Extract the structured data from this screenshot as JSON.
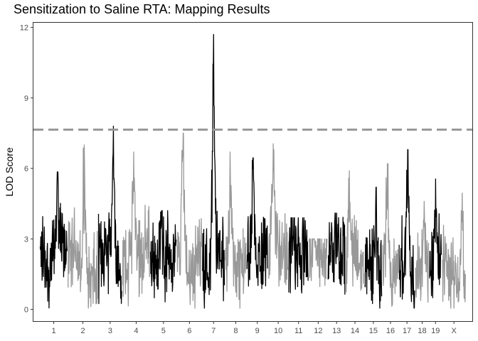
{
  "chart_data": {
    "type": "line",
    "title": "Sensitization to Saline RTA: Mapping Results",
    "xlabel": "",
    "ylabel": "LOD Score",
    "ylim": [
      -0.5,
      12.2
    ],
    "yticks": [
      0,
      3,
      6,
      9,
      12
    ],
    "threshold": 7.65,
    "grid": false,
    "legend": "none",
    "colors": {
      "odd": "#000000",
      "even": "#999999",
      "threshold": "#999999",
      "frame": "#333333"
    },
    "chromosomes": [
      {
        "label": "1",
        "x_range": [
          0,
          22
        ],
        "max_lod": 5.85,
        "peak_x": 14,
        "color_group": "odd"
      },
      {
        "label": "2",
        "x_range": [
          22,
          46
        ],
        "max_lod": 7.0,
        "peak_x": 35,
        "color_group": "even"
      },
      {
        "label": "3",
        "x_range": [
          46,
          65
        ],
        "max_lod": 7.8,
        "peak_x": 58,
        "color_group": "odd"
      },
      {
        "label": "4",
        "x_range": [
          65,
          87
        ],
        "max_lod": 6.7,
        "peak_x": 74,
        "color_group": "even"
      },
      {
        "label": "5",
        "x_range": [
          87,
          108
        ],
        "max_lod": 4.2,
        "peak_x": 96,
        "color_group": "odd"
      },
      {
        "label": "6",
        "x_range": [
          108,
          128
        ],
        "max_lod": 7.5,
        "peak_x": 113,
        "color_group": "even"
      },
      {
        "label": "7",
        "x_range": [
          128,
          146
        ],
        "max_lod": 11.7,
        "peak_x": 137,
        "color_group": "odd"
      },
      {
        "label": "8",
        "x_range": [
          146,
          163
        ],
        "max_lod": 6.7,
        "peak_x": 150,
        "color_group": "even"
      },
      {
        "label": "9",
        "x_range": [
          163,
          180
        ],
        "max_lod": 6.45,
        "peak_x": 168,
        "color_group": "odd"
      },
      {
        "label": "10",
        "x_range": [
          180,
          196
        ],
        "max_lod": 7.05,
        "peak_x": 184,
        "color_group": "even"
      },
      {
        "label": "11",
        "x_range": [
          196,
          212
        ],
        "max_lod": 3.9,
        "peak_x": 199,
        "color_group": "odd"
      },
      {
        "label": "12",
        "x_range": [
          212,
          227
        ],
        "max_lod": 3.0,
        "peak_x": 219,
        "color_group": "even"
      },
      {
        "label": "13",
        "x_range": [
          227,
          241
        ],
        "max_lod": 4.1,
        "peak_x": 233,
        "color_group": "odd"
      },
      {
        "label": "14",
        "x_range": [
          241,
          256
        ],
        "max_lod": 5.9,
        "peak_x": 244,
        "color_group": "even"
      },
      {
        "label": "15",
        "x_range": [
          256,
          270
        ],
        "max_lod": 5.2,
        "peak_x": 265,
        "color_group": "odd"
      },
      {
        "label": "16",
        "x_range": [
          270,
          283
        ],
        "max_lod": 6.2,
        "peak_x": 274,
        "color_group": "even"
      },
      {
        "label": "17",
        "x_range": [
          283,
          296
        ],
        "max_lod": 6.8,
        "peak_x": 290,
        "color_group": "odd"
      },
      {
        "label": "18",
        "x_range": [
          296,
          307
        ],
        "max_lod": 4.6,
        "peak_x": 303,
        "color_group": "even"
      },
      {
        "label": "19",
        "x_range": [
          307,
          317
        ],
        "max_lod": 5.55,
        "peak_x": 312,
        "color_group": "odd"
      },
      {
        "label": "X",
        "x_range": [
          317,
          336
        ],
        "max_lod": 4.95,
        "peak_x": 333,
        "color_group": "even"
      }
    ]
  }
}
